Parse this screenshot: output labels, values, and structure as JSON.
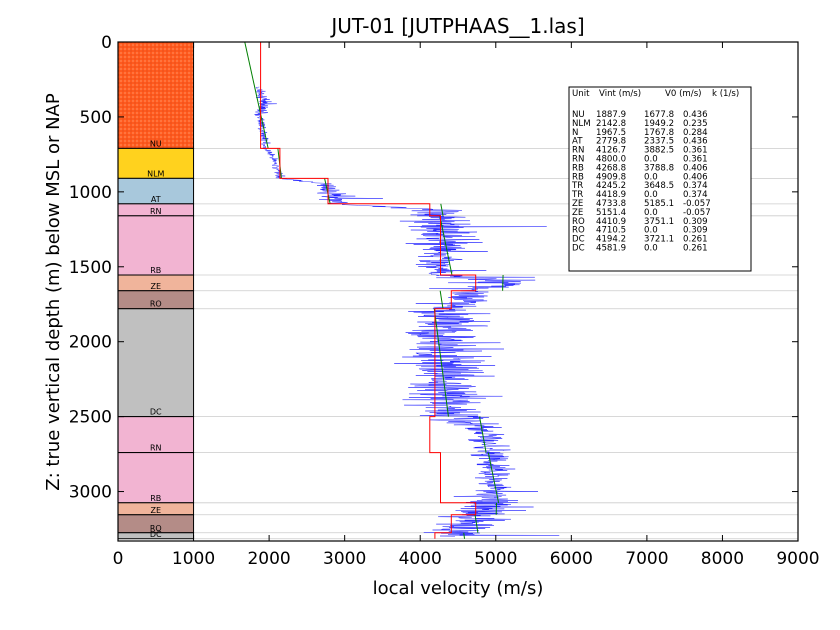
{
  "chart_data": {
    "type": "line",
    "title": "JUT-01 [JUTPHAAS__1.las]",
    "xlabel": "local velocity (m/s)",
    "ylabel": "Z: true vertical depth (m) below MSL or NAP",
    "xlim": [
      0,
      9000
    ],
    "ylim": [
      3330,
      0
    ],
    "y_inverted": true,
    "x_ticks": [
      "0",
      "1000",
      "2000",
      "3000",
      "4000",
      "5000",
      "6000",
      "7000",
      "8000",
      "9000"
    ],
    "y_ticks": [
      "0",
      "500",
      "1000",
      "1500",
      "2000",
      "2500",
      "3000"
    ],
    "grid": false,
    "colors": {
      "log": "#0000ff",
      "vint": "#ff0000",
      "v0k": "#008000",
      "boundary": "#cccccc"
    },
    "units_column": [
      {
        "label": "NU",
        "top": 0,
        "bottom": 710,
        "color": "#ff5a1e",
        "textured": true
      },
      {
        "label": "NLM",
        "top": 710,
        "bottom": 910,
        "color": "#ffd21e"
      },
      {
        "label": "AT",
        "top": 910,
        "bottom": 1080,
        "color": "#a8c8dc"
      },
      {
        "label": "RN",
        "top": 1080,
        "bottom": 1160,
        "color": "#f2b4d2"
      },
      {
        "label": "RB",
        "top": 1160,
        "bottom": 1555,
        "color": "#f2b4d2"
      },
      {
        "label": "ZE",
        "top": 1555,
        "bottom": 1660,
        "color": "#f0b49b"
      },
      {
        "label": "RO",
        "top": 1660,
        "bottom": 1780,
        "color": "#b48c87"
      },
      {
        "label": "DC",
        "top": 1780,
        "bottom": 2500,
        "color": "#c0c0c0"
      },
      {
        "label": "RN",
        "top": 2500,
        "bottom": 2740,
        "color": "#f2b4d2"
      },
      {
        "label": "RB",
        "top": 2740,
        "bottom": 3075,
        "color": "#f2b4d2"
      },
      {
        "label": "ZE",
        "top": 3075,
        "bottom": 3155,
        "color": "#f0b49b"
      },
      {
        "label": "RO",
        "top": 3155,
        "bottom": 3275,
        "color": "#b48c87"
      },
      {
        "label": "DC",
        "top": 3275,
        "bottom": 3315,
        "color": "#c0c0c0"
      }
    ],
    "velocity_model": [
      {
        "unit": "NU",
        "top": 0,
        "bottom": 710,
        "vint": 1887.9,
        "v0": 1677.8,
        "k": 0.436
      },
      {
        "unit": "NLM",
        "top": 710,
        "bottom": 910,
        "vint": 2142.8,
        "v0": 1949.2,
        "k": 0.235
      },
      {
        "unit": "AT",
        "top": 910,
        "bottom": 1080,
        "vint": 2779.8,
        "v0": 2337.5,
        "k": 0.436
      },
      {
        "unit": "RN",
        "top": 1080,
        "bottom": 1160,
        "vint": 4126.7,
        "v0": 3882.5,
        "k": 0.361
      },
      {
        "unit": "RB",
        "top": 1160,
        "bottom": 1555,
        "vint": 4268.8,
        "v0": 3788.8,
        "k": 0.406
      },
      {
        "unit": "ZE",
        "top": 1555,
        "bottom": 1660,
        "vint": 4733.8,
        "v0": 5185.1,
        "k": -0.057
      },
      {
        "unit": "RO",
        "top": 1660,
        "bottom": 1780,
        "vint": 4410.9,
        "v0": 3751.1,
        "k": 0.309
      },
      {
        "unit": "DC",
        "top": 1780,
        "bottom": 2500,
        "vint": 4194.2,
        "v0": 3721.1,
        "k": 0.261
      },
      {
        "unit": "RN",
        "top": 2500,
        "bottom": 2740,
        "vint": 4126.7,
        "v0": 3882.5,
        "k": 0.361
      },
      {
        "unit": "RB",
        "top": 2740,
        "bottom": 3075,
        "vint": 4268.8,
        "v0": 3788.8,
        "k": 0.406
      },
      {
        "unit": "ZE",
        "top": 3075,
        "bottom": 3155,
        "vint": 4733.8,
        "v0": 5185.1,
        "k": -0.057
      },
      {
        "unit": "RO",
        "top": 3155,
        "bottom": 3275,
        "vint": 4410.9,
        "v0": 3751.1,
        "k": 0.309
      },
      {
        "unit": "DC",
        "top": 3275,
        "bottom": 3315,
        "vint": 4194.2,
        "v0": 3721.1,
        "k": 0.261
      }
    ],
    "log_trend": [
      {
        "z": 300,
        "v": 1850,
        "noise": 80
      },
      {
        "z": 400,
        "v": 1950,
        "noise": 150
      },
      {
        "z": 500,
        "v": 1880,
        "noise": 90
      },
      {
        "z": 650,
        "v": 1950,
        "noise": 90
      },
      {
        "z": 710,
        "v": 1950,
        "noise": 80
      },
      {
        "z": 800,
        "v": 2080,
        "noise": 70
      },
      {
        "z": 910,
        "v": 2150,
        "noise": 80
      },
      {
        "z": 950,
        "v": 2780,
        "noise": 250
      },
      {
        "z": 1080,
        "v": 2900,
        "noise": 350
      },
      {
        "z": 1120,
        "v": 4200,
        "noise": 500
      },
      {
        "z": 1200,
        "v": 4300,
        "noise": 750
      },
      {
        "z": 1400,
        "v": 4300,
        "noise": 550
      },
      {
        "z": 1555,
        "v": 4250,
        "noise": 350
      },
      {
        "z": 1600,
        "v": 5200,
        "noise": 900
      },
      {
        "z": 1660,
        "v": 4700,
        "noise": 500
      },
      {
        "z": 1800,
        "v": 4350,
        "noise": 800
      },
      {
        "z": 2000,
        "v": 4300,
        "noise": 900
      },
      {
        "z": 2300,
        "v": 4350,
        "noise": 800
      },
      {
        "z": 2500,
        "v": 4450,
        "noise": 700
      },
      {
        "z": 2600,
        "v": 4900,
        "noise": 400
      },
      {
        "z": 2800,
        "v": 4950,
        "noise": 350
      },
      {
        "z": 3000,
        "v": 4950,
        "noise": 350
      },
      {
        "z": 3100,
        "v": 5000,
        "noise": 700
      },
      {
        "z": 3200,
        "v": 4600,
        "noise": 800
      },
      {
        "z": 3300,
        "v": 4500,
        "noise": 600
      }
    ],
    "table": {
      "headers": [
        "Unit",
        "Vint (m/s)",
        "V0 (m/s)",
        "k (1/s)"
      ],
      "rows": [
        [
          "NU",
          "1887.9",
          "1677.8",
          "0.436"
        ],
        [
          "NLM",
          "2142.8",
          "1949.2",
          "0.235"
        ],
        [
          "N",
          "1967.5",
          "1767.8",
          "0.284"
        ],
        [
          "AT",
          "2779.8",
          "2337.5",
          "0.436"
        ],
        [
          "RN",
          "4126.7",
          "3882.5",
          "0.361"
        ],
        [
          "RN",
          "4800.0",
          "0.0",
          "0.361"
        ],
        [
          "RB",
          "4268.8",
          "3788.8",
          "0.406"
        ],
        [
          "RB",
          "4909.8",
          "0.0",
          "0.406"
        ],
        [
          "TR",
          "4245.2",
          "3648.5",
          "0.374"
        ],
        [
          "TR",
          "4418.9",
          "0.0",
          "0.374"
        ],
        [
          "ZE",
          "4733.8",
          "5185.1",
          "-0.057"
        ],
        [
          "ZE",
          "5151.4",
          "0.0",
          "-0.057"
        ],
        [
          "RO",
          "4410.9",
          "3751.1",
          "0.309"
        ],
        [
          "RO",
          "4710.5",
          "0.0",
          "0.309"
        ],
        [
          "DC",
          "4194.2",
          "3721.1",
          "0.261"
        ],
        [
          "DC",
          "4581.9",
          "0.0",
          "0.261"
        ]
      ]
    }
  }
}
